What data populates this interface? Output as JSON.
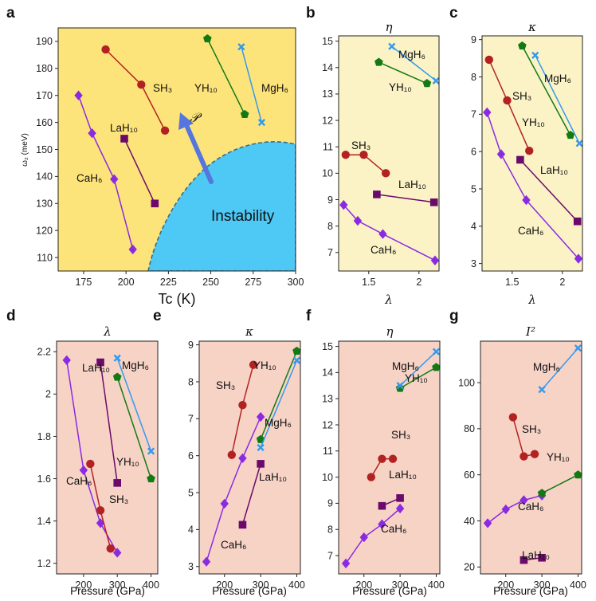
{
  "figure": {
    "panel_labels": [
      "a",
      "b",
      "c",
      "d",
      "e",
      "f",
      "g"
    ],
    "colors": {
      "CaH6": "#8a2be2",
      "LaH10": "#6b0a6b",
      "SH3": "#b22222",
      "YH10": "#137a13",
      "MgH6": "#3399ee",
      "bg_yellow": "#fde47a",
      "bg_yellow_light": "#fbf3c6",
      "bg_pink": "#f7d3c6",
      "instability": "#4ec8f4",
      "arrow": "#5577dd"
    },
    "markers": {
      "CaH6": "diamond",
      "LaH10": "square",
      "SH3": "circle",
      "YH10": "pentagon",
      "MgH6": "x-cross"
    }
  },
  "chart_data": [
    {
      "id": "a",
      "type": "line",
      "title": "",
      "xlabel": "Tc (K)",
      "ylabel": "ω₂ (meV)",
      "xlim": [
        160,
        300
      ],
      "ylim": [
        105,
        195
      ],
      "xticks": [
        175,
        200,
        225,
        250,
        275,
        300
      ],
      "yticks": [
        110,
        120,
        130,
        140,
        150,
        160,
        170,
        180,
        190
      ],
      "annotations": {
        "instability": "Instability",
        "arrow_label": "𝒫"
      },
      "series": [
        {
          "name": "CaH6",
          "label": "CaH₆",
          "x": [
            172,
            180,
            193,
            204
          ],
          "y": [
            170,
            156,
            139,
            113
          ]
        },
        {
          "name": "LaH10",
          "label": "LaH₁₀",
          "x": [
            199,
            217
          ],
          "y": [
            154,
            130
          ]
        },
        {
          "name": "SH3",
          "label": "SH₃",
          "x": [
            188,
            209,
            223
          ],
          "y": [
            187,
            174,
            157
          ]
        },
        {
          "name": "YH10",
          "label": "YH₁₀",
          "x": [
            248,
            270
          ],
          "y": [
            191,
            163
          ]
        },
        {
          "name": "MgH6",
          "label": "MgH₆",
          "x": [
            268,
            280
          ],
          "y": [
            188,
            160
          ]
        }
      ]
    },
    {
      "id": "b",
      "type": "line",
      "title": "η",
      "xlabel": "λ",
      "ylabel": "",
      "xlim": [
        1.2,
        2.2
      ],
      "ylim": [
        6.3,
        15.2
      ],
      "xticks": [
        1.5,
        2.0
      ],
      "yticks": [
        7,
        8,
        9,
        10,
        11,
        12,
        13,
        14,
        15
      ],
      "series": [
        {
          "name": "CaH6",
          "label": "CaH₆",
          "x": [
            1.25,
            1.39,
            1.64,
            2.16
          ],
          "y": [
            8.8,
            8.2,
            7.7,
            6.7
          ]
        },
        {
          "name": "LaH10",
          "label": "LaH₁₀",
          "x": [
            1.58,
            2.15
          ],
          "y": [
            9.2,
            8.9
          ]
        },
        {
          "name": "SH3",
          "label": "SH₃",
          "x": [
            1.27,
            1.45,
            1.67
          ],
          "y": [
            10.7,
            10.7,
            10.0
          ]
        },
        {
          "name": "YH10",
          "label": "YH₁₀",
          "x": [
            1.6,
            2.08
          ],
          "y": [
            14.2,
            13.4
          ]
        },
        {
          "name": "MgH6",
          "label": "MgH₆",
          "x": [
            1.73,
            2.17
          ],
          "y": [
            14.8,
            13.5
          ]
        }
      ]
    },
    {
      "id": "c",
      "type": "line",
      "title": "κ",
      "xlabel": "λ",
      "ylabel": "",
      "xlim": [
        1.2,
        2.2
      ],
      "ylim": [
        2.8,
        9.1
      ],
      "xticks": [
        1.5,
        2.0
      ],
      "yticks": [
        3,
        4,
        5,
        6,
        7,
        8,
        9
      ],
      "series": [
        {
          "name": "CaH6",
          "label": "CaH₆",
          "x": [
            1.25,
            1.39,
            1.64,
            2.16
          ],
          "y": [
            7.05,
            5.93,
            4.7,
            3.13
          ]
        },
        {
          "name": "LaH10",
          "label": "LaH₁₀",
          "x": [
            1.58,
            2.15
          ],
          "y": [
            5.78,
            4.13
          ]
        },
        {
          "name": "SH3",
          "label": "SH₃",
          "x": [
            1.27,
            1.45,
            1.67
          ],
          "y": [
            8.46,
            7.37,
            6.02
          ]
        },
        {
          "name": "YH10",
          "label": "YH₁₀",
          "x": [
            1.6,
            2.08
          ],
          "y": [
            8.83,
            6.44
          ]
        },
        {
          "name": "MgH6",
          "label": "MgH₆",
          "x": [
            1.73,
            2.17
          ],
          "y": [
            8.58,
            6.22
          ]
        }
      ]
    },
    {
      "id": "d",
      "type": "line",
      "title": "λ",
      "xlabel": "Pressure (GPa)",
      "ylabel": "",
      "xlim": [
        120,
        420
      ],
      "ylim": [
        1.15,
        2.25
      ],
      "xticks": [
        200,
        300,
        400
      ],
      "yticks": [
        1.2,
        1.4,
        1.6,
        1.8,
        2.0,
        2.2
      ],
      "series": [
        {
          "name": "CaH6",
          "label": "CaH₆",
          "x": [
            150,
            200,
            250,
            300
          ],
          "y": [
            2.16,
            1.64,
            1.39,
            1.25
          ]
        },
        {
          "name": "LaH10",
          "label": "LaH₁₀",
          "x": [
            250,
            300
          ],
          "y": [
            2.15,
            1.58
          ]
        },
        {
          "name": "SH3",
          "label": "SH₃",
          "x": [
            220,
            250,
            280
          ],
          "y": [
            1.67,
            1.45,
            1.27
          ]
        },
        {
          "name": "YH10",
          "label": "YH₁₀",
          "x": [
            300,
            400
          ],
          "y": [
            2.08,
            1.6
          ]
        },
        {
          "name": "MgH6",
          "label": "MgH₆",
          "x": [
            300,
            400
          ],
          "y": [
            2.17,
            1.73
          ]
        }
      ]
    },
    {
      "id": "e",
      "type": "line",
      "title": "κ",
      "xlabel": "Pressure (GPa)",
      "ylabel": "",
      "xlim": [
        130,
        410
      ],
      "ylim": [
        2.8,
        9.1
      ],
      "xticks": [
        200,
        300,
        400
      ],
      "yticks": [
        3,
        4,
        5,
        6,
        7,
        8,
        9
      ],
      "series": [
        {
          "name": "CaH6",
          "label": "CaH₆",
          "x": [
            150,
            200,
            250,
            300
          ],
          "y": [
            3.13,
            4.7,
            5.93,
            7.05
          ]
        },
        {
          "name": "LaH10",
          "label": "LaH₁₀",
          "x": [
            250,
            300
          ],
          "y": [
            4.13,
            5.78
          ]
        },
        {
          "name": "SH3",
          "label": "SH₃",
          "x": [
            220,
            250,
            280
          ],
          "y": [
            6.02,
            7.37,
            8.46
          ]
        },
        {
          "name": "YH10",
          "label": "YH₁₀",
          "x": [
            300,
            400
          ],
          "y": [
            6.44,
            8.83
          ]
        },
        {
          "name": "MgH6",
          "label": "MgH₆",
          "x": [
            300,
            400
          ],
          "y": [
            6.22,
            8.58
          ]
        }
      ]
    },
    {
      "id": "f",
      "type": "line",
      "title": "η",
      "xlabel": "Pressure (GPa)",
      "ylabel": "",
      "xlim": [
        130,
        410
      ],
      "ylim": [
        6.3,
        15.2
      ],
      "xticks": [
        200,
        300,
        400
      ],
      "yticks": [
        7,
        8,
        9,
        10,
        11,
        12,
        13,
        14,
        15
      ],
      "series": [
        {
          "name": "CaH6",
          "label": "CaH₆",
          "x": [
            150,
            200,
            250,
            300
          ],
          "y": [
            6.7,
            7.7,
            8.2,
            8.8
          ]
        },
        {
          "name": "LaH10",
          "label": "LaH₁₀",
          "x": [
            250,
            300
          ],
          "y": [
            8.9,
            9.2
          ]
        },
        {
          "name": "SH3",
          "label": "SH₃",
          "x": [
            220,
            250,
            280
          ],
          "y": [
            10.0,
            10.7,
            10.7
          ]
        },
        {
          "name": "YH10",
          "label": "YH₁₀",
          "x": [
            300,
            400
          ],
          "y": [
            13.4,
            14.2
          ]
        },
        {
          "name": "MgH6",
          "label": "MgH₆",
          "x": [
            300,
            400
          ],
          "y": [
            13.5,
            14.8
          ]
        }
      ]
    },
    {
      "id": "g",
      "type": "line",
      "title": "I²",
      "xlabel": "Pressure (GPa)",
      "ylabel": "",
      "xlim": [
        130,
        410
      ],
      "ylim": [
        17,
        118
      ],
      "xticks": [
        200,
        300,
        400
      ],
      "yticks": [
        20,
        40,
        60,
        80,
        100
      ],
      "series": [
        {
          "name": "CaH6",
          "label": "CaH₆",
          "x": [
            150,
            200,
            250,
            300
          ],
          "y": [
            39,
            45,
            49,
            51
          ]
        },
        {
          "name": "LaH10",
          "label": "LaH₁₀",
          "x": [
            250,
            300
          ],
          "y": [
            23,
            24
          ]
        },
        {
          "name": "SH3",
          "label": "SH₃",
          "x": [
            220,
            250,
            280
          ],
          "y": [
            85,
            68,
            69
          ]
        },
        {
          "name": "YH10",
          "label": "YH₁₀",
          "x": [
            300,
            400
          ],
          "y": [
            52,
            60
          ]
        },
        {
          "name": "MgH6",
          "label": "MgH₆",
          "x": [
            300,
            400
          ],
          "y": [
            97,
            115
          ]
        }
      ]
    }
  ]
}
